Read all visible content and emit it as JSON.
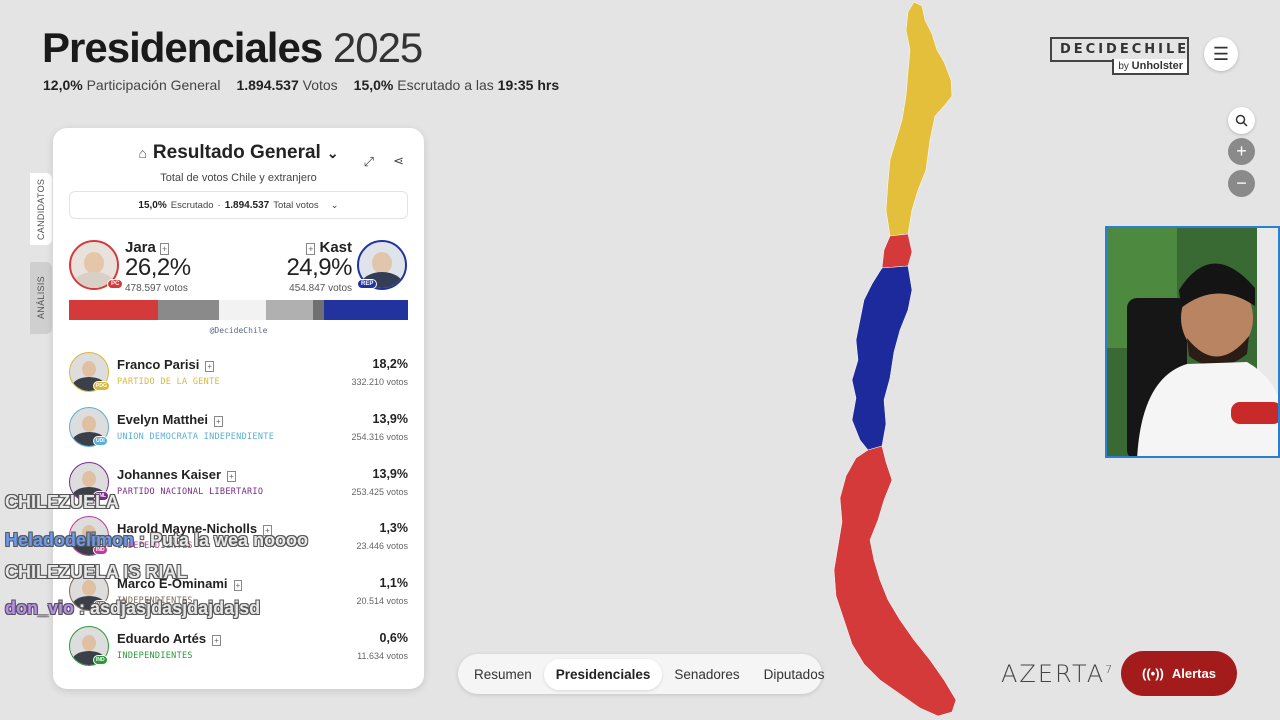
{
  "header": {
    "title_bold": "Presidenciales",
    "title_year": "2025",
    "participation_value": "12,0%",
    "participation_label": "Participación General",
    "votes_value": "1.894.537",
    "votes_label": "Votos",
    "scrut_value": "15,0%",
    "scrut_label": "Escrutado a las",
    "scrut_time": "19:35 hrs"
  },
  "logo": {
    "main": "DECIDECHILE",
    "by_prefix": "by",
    "by_name": "Unholster"
  },
  "side_tabs": {
    "candidatos": "CANDIDATOS",
    "analisis": "ANÁLISIS"
  },
  "panel": {
    "title": "Resultado General",
    "subtitle": "Total de votos Chile y extranjero",
    "scrut_value": "15,0%",
    "scrut_label": "Escrutado",
    "separator": "·",
    "total_value": "1.894.537",
    "total_label": "Total votos",
    "handle": "@DecideChile"
  },
  "top_candidates": {
    "left": {
      "name": "Jara",
      "pct": "26,2%",
      "votes": "478.597 votos",
      "party": "PC",
      "color": "#d43a3a"
    },
    "right": {
      "name": "Kast",
      "pct": "24,9%",
      "votes": "454.847 votos",
      "party": "REP",
      "color": "#2233a0"
    }
  },
  "result_bar": [
    {
      "pct": 26.2,
      "color": "#d43a3a"
    },
    {
      "pct": 18.2,
      "color": "#8a8a8a"
    },
    {
      "pct": 13.9,
      "color": "#f2f2f2"
    },
    {
      "pct": 13.9,
      "color": "#b0b0b0"
    },
    {
      "pct": 3.0,
      "color": "#707070"
    },
    {
      "pct": 24.9,
      "color": "#2233a0"
    }
  ],
  "candidates": [
    {
      "name": "Franco Parisi",
      "party": "PARTIDO DE LA GENTE",
      "pct": "18,2%",
      "votes": "332.210 votos",
      "color": "#d8b93a",
      "badge": "PDG"
    },
    {
      "name": "Evelyn Matthei",
      "party": "UNION DEMOCRATA INDEPENDIENTE",
      "pct": "13,9%",
      "votes": "254.316 votos",
      "color": "#5ab0d6",
      "badge": "UDI"
    },
    {
      "name": "Johannes Kaiser",
      "party": "PARTIDO NACIONAL LIBERTARIO",
      "pct": "13,9%",
      "votes": "253.425 votos",
      "color": "#7a2a8a",
      "badge": "PNL"
    },
    {
      "name": "Harold Mayne-Nicholls",
      "party": "INDEPENDIENTES",
      "pct": "1,3%",
      "votes": "23.446 votos",
      "color": "#c23a9a",
      "badge": "IND"
    },
    {
      "name": "Marco E-Ominami",
      "party": "INDEPENDIENTES",
      "pct": "1,1%",
      "votes": "20.514 votos",
      "color": "#7a6a5a",
      "badge": "IND"
    },
    {
      "name": "Eduardo Artés",
      "party": "INDEPENDIENTES",
      "pct": "0,6%",
      "votes": "11.634 votos",
      "color": "#2a9a3a",
      "badge": "IND"
    }
  ],
  "chat": [
    {
      "user": "",
      "text": "CHILEZUELA"
    },
    {
      "user": "Heladodelimon",
      "text": ": Puta la wea noooo"
    },
    {
      "user": "",
      "text": "CHILEZUELA IS RIAL"
    },
    {
      "user": "don_vio",
      "text": ": asdjasjdasjdajdajsd"
    }
  ],
  "nav": {
    "items": [
      "Resumen",
      "Presidenciales",
      "Senadores",
      "Diputados"
    ],
    "active": "Presidenciales"
  },
  "footer": {
    "azerta": "AZERTA",
    "alert_label": "Alertas"
  },
  "map_colors": {
    "north": "#e4bf3c",
    "center": "#1c2a9c",
    "south": "#d43a3a"
  },
  "icons": {
    "menu": "hamburger-icon",
    "search": "search-icon",
    "zoom_in": "plus-icon",
    "zoom_out": "minus-icon",
    "ballot": "ballot-icon",
    "expand": "expand-icon",
    "share": "share-icon",
    "alert": "broadcast-icon"
  }
}
